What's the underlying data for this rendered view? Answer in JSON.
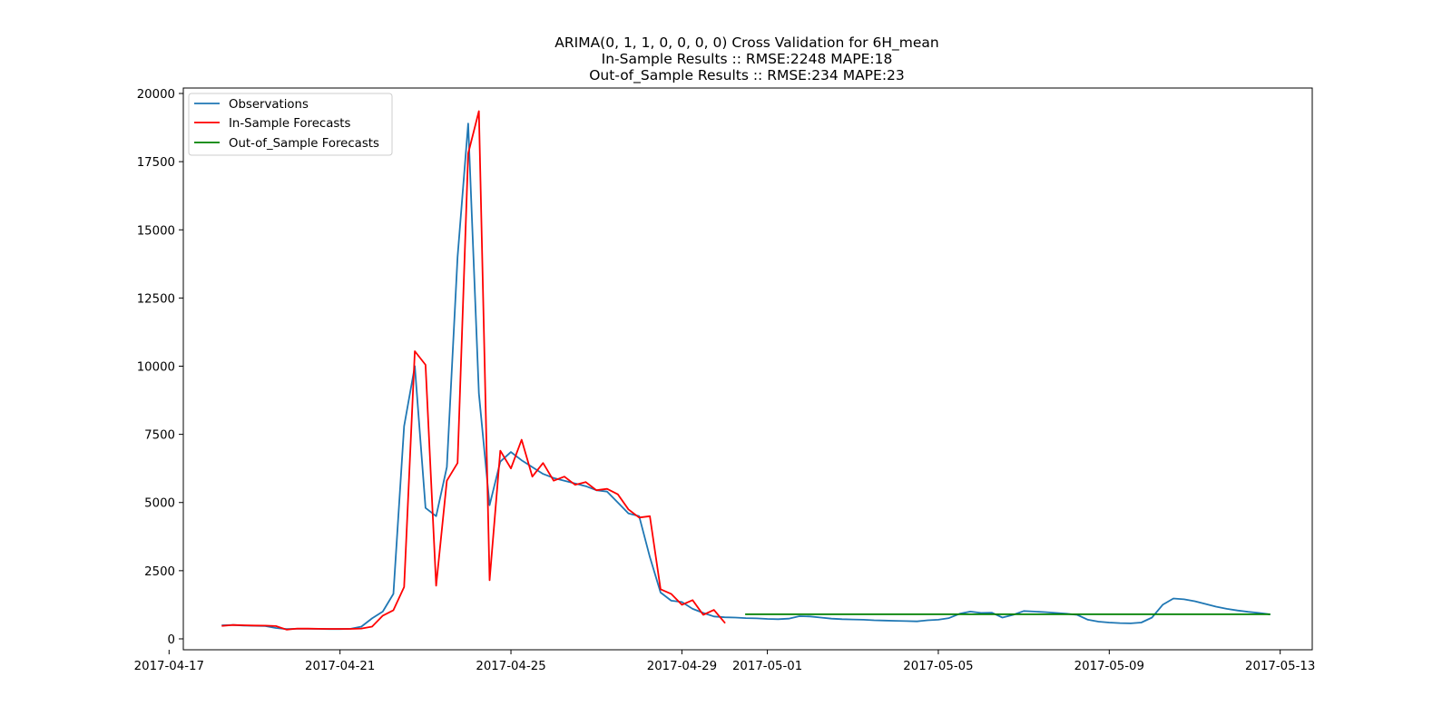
{
  "chart_data": {
    "type": "line",
    "title": [
      "ARIMA(0, 1, 1, 0, 0, 0, 0) Cross Validation for 6H_mean",
      "In-Sample Results :: RMSE:2248 MAPE:18",
      "Out-of_Sample Results :: RMSE:234 MAPE:23"
    ],
    "xlabel": "",
    "ylabel": "",
    "x_type": "datetime",
    "xlim": [
      "2017-04-17T08:00",
      "2017-05-13T18:00"
    ],
    "ylim": [
      -400,
      20200
    ],
    "x_ticks": [
      "2017-04-17",
      "2017-04-21",
      "2017-04-25",
      "2017-04-29",
      "2017-05-01",
      "2017-05-05",
      "2017-05-09",
      "2017-05-13"
    ],
    "y_ticks": [
      0,
      2500,
      5000,
      7500,
      10000,
      12500,
      15000,
      17500,
      20000
    ],
    "y_tick_labels": [
      "0",
      "2500",
      "5000",
      "7500",
      "10000",
      "12500",
      "15000",
      "17500",
      "20000"
    ],
    "grid": false,
    "legend_position": "upper-left",
    "series": [
      {
        "name": "Observations",
        "color": "#1f77b4",
        "points": [
          [
            "2017-04-18T06:00",
            500
          ],
          [
            "2017-04-18T12:00",
            510
          ],
          [
            "2017-04-18T18:00",
            490
          ],
          [
            "2017-04-19T00:00",
            480
          ],
          [
            "2017-04-19T06:00",
            470
          ],
          [
            "2017-04-19T12:00",
            400
          ],
          [
            "2017-04-19T18:00",
            360
          ],
          [
            "2017-04-20T00:00",
            370
          ],
          [
            "2017-04-20T06:00",
            370
          ],
          [
            "2017-04-20T12:00",
            365
          ],
          [
            "2017-04-20T18:00",
            360
          ],
          [
            "2017-04-21T00:00",
            360
          ],
          [
            "2017-04-21T06:00",
            370
          ],
          [
            "2017-04-21T12:00",
            450
          ],
          [
            "2017-04-21T18:00",
            750
          ],
          [
            "2017-04-22T00:00",
            1000
          ],
          [
            "2017-04-22T06:00",
            1650
          ],
          [
            "2017-04-22T12:00",
            7800
          ],
          [
            "2017-04-22T18:00",
            10000
          ],
          [
            "2017-04-23T00:00",
            4800
          ],
          [
            "2017-04-23T06:00",
            4500
          ],
          [
            "2017-04-23T12:00",
            6300
          ],
          [
            "2017-04-23T18:00",
            14000
          ],
          [
            "2017-04-24T00:00",
            18900
          ],
          [
            "2017-04-24T06:00",
            9000
          ],
          [
            "2017-04-24T12:00",
            4900
          ],
          [
            "2017-04-24T18:00",
            6500
          ],
          [
            "2017-04-25T00:00",
            6850
          ],
          [
            "2017-04-25T06:00",
            6550
          ],
          [
            "2017-04-25T12:00",
            6300
          ],
          [
            "2017-04-25T18:00",
            6050
          ],
          [
            "2017-04-26T00:00",
            5900
          ],
          [
            "2017-04-26T06:00",
            5800
          ],
          [
            "2017-04-26T12:00",
            5700
          ],
          [
            "2017-04-26T18:00",
            5600
          ],
          [
            "2017-04-27T00:00",
            5450
          ],
          [
            "2017-04-27T06:00",
            5400
          ],
          [
            "2017-04-27T12:00",
            5000
          ],
          [
            "2017-04-27T18:00",
            4600
          ],
          [
            "2017-04-28T00:00",
            4500
          ],
          [
            "2017-04-28T06:00",
            3000
          ],
          [
            "2017-04-28T12:00",
            1700
          ],
          [
            "2017-04-28T18:00",
            1400
          ],
          [
            "2017-04-29T00:00",
            1350
          ],
          [
            "2017-04-29T06:00",
            1100
          ],
          [
            "2017-04-29T12:00",
            950
          ],
          [
            "2017-04-29T18:00",
            820
          ],
          [
            "2017-04-30T00:00",
            790
          ],
          [
            "2017-04-30T06:00",
            780
          ],
          [
            "2017-04-30T12:00",
            760
          ],
          [
            "2017-04-30T18:00",
            750
          ],
          [
            "2017-05-01T00:00",
            730
          ],
          [
            "2017-05-01T06:00",
            720
          ],
          [
            "2017-05-01T12:00",
            740
          ],
          [
            "2017-05-01T18:00",
            830
          ],
          [
            "2017-05-02T00:00",
            820
          ],
          [
            "2017-05-02T06:00",
            780
          ],
          [
            "2017-05-02T12:00",
            740
          ],
          [
            "2017-05-02T18:00",
            720
          ],
          [
            "2017-05-03T00:00",
            710
          ],
          [
            "2017-05-03T06:00",
            700
          ],
          [
            "2017-05-03T12:00",
            680
          ],
          [
            "2017-05-03T18:00",
            670
          ],
          [
            "2017-05-04T00:00",
            660
          ],
          [
            "2017-05-04T06:00",
            650
          ],
          [
            "2017-05-04T12:00",
            640
          ],
          [
            "2017-05-04T18:00",
            680
          ],
          [
            "2017-05-05T00:00",
            700
          ],
          [
            "2017-05-05T06:00",
            760
          ],
          [
            "2017-05-05T12:00",
            920
          ],
          [
            "2017-05-05T18:00",
            1000
          ],
          [
            "2017-05-06T00:00",
            950
          ],
          [
            "2017-05-06T06:00",
            960
          ],
          [
            "2017-05-06T12:00",
            780
          ],
          [
            "2017-05-06T18:00",
            880
          ],
          [
            "2017-05-07T00:00",
            1020
          ],
          [
            "2017-05-07T06:00",
            1000
          ],
          [
            "2017-05-07T12:00",
            980
          ],
          [
            "2017-05-07T18:00",
            950
          ],
          [
            "2017-05-08T00:00",
            920
          ],
          [
            "2017-05-08T06:00",
            880
          ],
          [
            "2017-05-08T12:00",
            700
          ],
          [
            "2017-05-08T18:00",
            630
          ],
          [
            "2017-05-09T00:00",
            600
          ],
          [
            "2017-05-09T06:00",
            580
          ],
          [
            "2017-05-09T12:00",
            570
          ],
          [
            "2017-05-09T18:00",
            600
          ],
          [
            "2017-05-10T00:00",
            780
          ],
          [
            "2017-05-10T06:00",
            1250
          ],
          [
            "2017-05-10T12:00",
            1480
          ],
          [
            "2017-05-10T18:00",
            1450
          ],
          [
            "2017-05-11T00:00",
            1380
          ],
          [
            "2017-05-11T06:00",
            1280
          ],
          [
            "2017-05-11T12:00",
            1180
          ],
          [
            "2017-05-11T18:00",
            1100
          ],
          [
            "2017-05-12T00:00",
            1040
          ],
          [
            "2017-05-12T06:00",
            990
          ],
          [
            "2017-05-12T12:00",
            950
          ],
          [
            "2017-05-12T18:00",
            900
          ]
        ]
      },
      {
        "name": "In-Sample Forecasts",
        "color": "#ff0000",
        "points": [
          [
            "2017-04-18T06:00",
            480
          ],
          [
            "2017-04-18T12:00",
            510
          ],
          [
            "2017-04-18T18:00",
            500
          ],
          [
            "2017-04-19T00:00",
            490
          ],
          [
            "2017-04-19T06:00",
            485
          ],
          [
            "2017-04-19T12:00",
            470
          ],
          [
            "2017-04-19T18:00",
            340
          ],
          [
            "2017-04-20T00:00",
            380
          ],
          [
            "2017-04-20T06:00",
            375
          ],
          [
            "2017-04-20T12:00",
            370
          ],
          [
            "2017-04-20T18:00",
            365
          ],
          [
            "2017-04-21T00:00",
            365
          ],
          [
            "2017-04-21T06:00",
            365
          ],
          [
            "2017-04-21T12:00",
            380
          ],
          [
            "2017-04-21T18:00",
            450
          ],
          [
            "2017-04-22T00:00",
            850
          ],
          [
            "2017-04-22T06:00",
            1050
          ],
          [
            "2017-04-22T12:00",
            1900
          ],
          [
            "2017-04-22T18:00",
            10550
          ],
          [
            "2017-04-23T00:00",
            10050
          ],
          [
            "2017-04-23T06:00",
            1950
          ],
          [
            "2017-04-23T12:00",
            5800
          ],
          [
            "2017-04-23T18:00",
            6450
          ],
          [
            "2017-04-24T00:00",
            17800
          ],
          [
            "2017-04-24T06:00",
            19350
          ],
          [
            "2017-04-24T12:00",
            2150
          ],
          [
            "2017-04-24T18:00",
            6900
          ],
          [
            "2017-04-25T00:00",
            6250
          ],
          [
            "2017-04-25T06:00",
            7300
          ],
          [
            "2017-04-25T12:00",
            5950
          ],
          [
            "2017-04-25T18:00",
            6450
          ],
          [
            "2017-04-26T00:00",
            5800
          ],
          [
            "2017-04-26T06:00",
            5950
          ],
          [
            "2017-04-26T12:00",
            5650
          ],
          [
            "2017-04-26T18:00",
            5750
          ],
          [
            "2017-04-27T00:00",
            5450
          ],
          [
            "2017-04-27T06:00",
            5500
          ],
          [
            "2017-04-27T12:00",
            5300
          ],
          [
            "2017-04-27T18:00",
            4750
          ],
          [
            "2017-04-28T00:00",
            4450
          ],
          [
            "2017-04-28T06:00",
            4500
          ],
          [
            "2017-04-28T12:00",
            1820
          ],
          [
            "2017-04-28T18:00",
            1650
          ],
          [
            "2017-04-29T00:00",
            1250
          ],
          [
            "2017-04-29T06:00",
            1420
          ],
          [
            "2017-04-29T12:00",
            880
          ],
          [
            "2017-04-29T18:00",
            1060
          ],
          [
            "2017-04-30T00:00",
            600
          ]
        ]
      },
      {
        "name": "Out-of_Sample Forecasts",
        "color": "#008000",
        "points": [
          [
            "2017-04-30T12:00",
            900
          ],
          [
            "2017-05-12T18:00",
            900
          ]
        ]
      }
    ]
  }
}
